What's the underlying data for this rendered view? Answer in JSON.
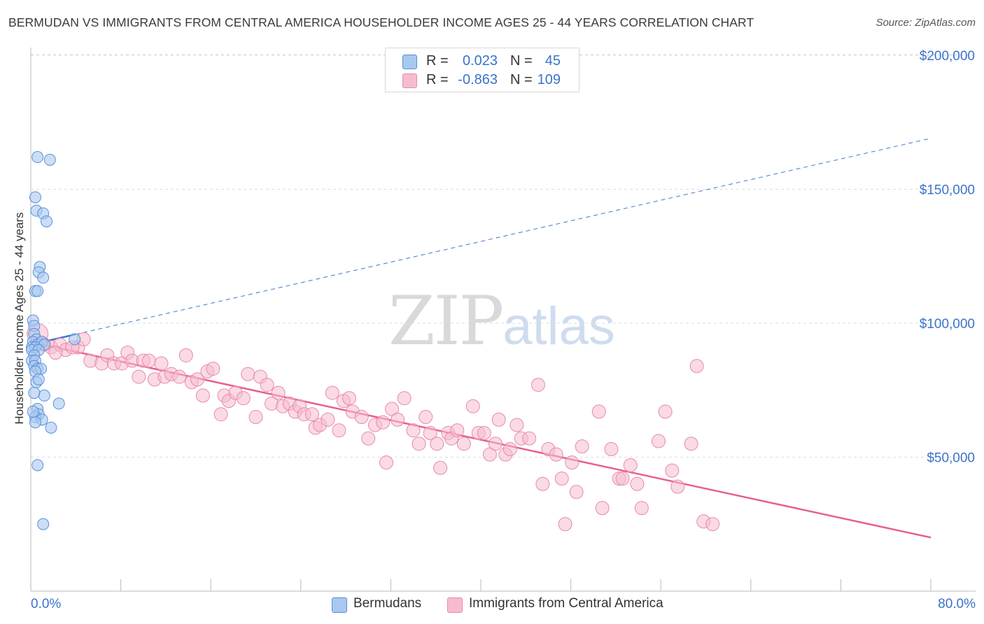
{
  "title": "BERMUDAN VS IMMIGRANTS FROM CENTRAL AMERICA HOUSEHOLDER INCOME AGES 25 - 44 YEARS CORRELATION CHART",
  "source": "Source: ZipAtlas.com",
  "watermark": {
    "zip": "ZIP",
    "atlas": "atlas"
  },
  "legend": {
    "rows": [
      {
        "r_label": "R =",
        "r_value": "0.023",
        "n_label": "N =",
        "n_value": "45"
      },
      {
        "r_label": "R =",
        "r_value": "-0.863",
        "n_label": "N =",
        "n_value": "109"
      }
    ]
  },
  "bottom_legend": {
    "series1": "Bermudans",
    "series2": "Immigrants from Central America"
  },
  "colors": {
    "blue_fill": "#a9c8f0",
    "blue_stroke": "#5a8fd8",
    "blue_line": "#3a78d0",
    "pink_fill": "#f6bccd",
    "pink_stroke": "#e88aa8",
    "pink_line": "#e8608c",
    "tick_text": "#3b73c8",
    "grid": "#dddddd"
  },
  "chart_data": {
    "type": "scatter",
    "title": "BERMUDAN VS IMMIGRANTS FROM CENTRAL AMERICA HOUSEHOLDER INCOME AGES 25 - 44 YEARS CORRELATION CHART",
    "xlabel": "",
    "ylabel": "Householder Income Ages 25 - 44 years",
    "xlim": [
      0,
      80
    ],
    "ylim": [
      0,
      210000
    ],
    "x_tick_labels": [
      "0.0%",
      "80.0%"
    ],
    "y_ticks": [
      50000,
      100000,
      150000,
      200000
    ],
    "y_tick_labels": [
      "$50,000",
      "$100,000",
      "$150,000",
      "$200,000"
    ],
    "grid": true,
    "legend_position": "top-center",
    "series": [
      {
        "name": "Bermudans",
        "r": 0.023,
        "n": 45,
        "trend": {
          "x": [
            0,
            80
          ],
          "y": [
            92000,
            169000
          ],
          "solid_until_x": 4.0
        },
        "points": [
          [
            0.6,
            162000
          ],
          [
            1.7,
            161000
          ],
          [
            0.4,
            147000
          ],
          [
            0.5,
            142000
          ],
          [
            1.1,
            141000
          ],
          [
            1.4,
            138000
          ],
          [
            0.8,
            121000
          ],
          [
            0.7,
            119000
          ],
          [
            1.1,
            117000
          ],
          [
            0.4,
            112000
          ],
          [
            0.6,
            112000
          ],
          [
            0.2,
            101000
          ],
          [
            0.3,
            99000
          ],
          [
            0.3,
            96000
          ],
          [
            0.5,
            94000
          ],
          [
            0.2,
            93000
          ],
          [
            0.6,
            92000
          ],
          [
            1.0,
            93000
          ],
          [
            1.2,
            92000
          ],
          [
            0.1,
            91000
          ],
          [
            0.4,
            91000
          ],
          [
            0.1,
            90000
          ],
          [
            0.7,
            90000
          ],
          [
            3.9,
            94000
          ],
          [
            0.3,
            88000
          ],
          [
            0.1,
            86000
          ],
          [
            0.4,
            86000
          ],
          [
            0.3,
            84000
          ],
          [
            0.6,
            83000
          ],
          [
            0.9,
            83000
          ],
          [
            0.4,
            82000
          ],
          [
            0.5,
            78000
          ],
          [
            0.7,
            79000
          ],
          [
            1.2,
            73000
          ],
          [
            2.5,
            70000
          ],
          [
            0.3,
            74000
          ],
          [
            0.6,
            68000
          ],
          [
            0.7,
            66000
          ],
          [
            0.4,
            65000
          ],
          [
            1.0,
            64000
          ],
          [
            0.4,
            63000
          ],
          [
            1.8,
            61000
          ],
          [
            0.6,
            47000
          ],
          [
            1.1,
            25000
          ],
          [
            0.2,
            67000
          ]
        ]
      },
      {
        "name": "Immigrants from Central America",
        "r": -0.863,
        "n": 109,
        "trend": {
          "x": [
            0,
            80
          ],
          "y": [
            93000,
            20000
          ]
        },
        "points": [
          [
            0.6,
            96000
          ],
          [
            1.2,
            92000
          ],
          [
            1.8,
            91000
          ],
          [
            2.6,
            92000
          ],
          [
            3.1,
            90000
          ],
          [
            4.2,
            91000
          ],
          [
            4.7,
            94000
          ],
          [
            5.3,
            86000
          ],
          [
            6.3,
            85000
          ],
          [
            6.8,
            88000
          ],
          [
            7.4,
            85000
          ],
          [
            8.1,
            85000
          ],
          [
            8.6,
            89000
          ],
          [
            9.0,
            86000
          ],
          [
            9.6,
            80000
          ],
          [
            10.0,
            86000
          ],
          [
            10.5,
            86000
          ],
          [
            11.0,
            79000
          ],
          [
            11.6,
            85000
          ],
          [
            11.9,
            80000
          ],
          [
            12.5,
            81000
          ],
          [
            13.2,
            80000
          ],
          [
            13.8,
            88000
          ],
          [
            14.3,
            78000
          ],
          [
            14.8,
            79000
          ],
          [
            15.3,
            73000
          ],
          [
            15.7,
            82000
          ],
          [
            16.2,
            83000
          ],
          [
            16.9,
            66000
          ],
          [
            17.2,
            73000
          ],
          [
            17.6,
            71000
          ],
          [
            18.2,
            74000
          ],
          [
            18.9,
            72000
          ],
          [
            19.3,
            81000
          ],
          [
            20.0,
            65000
          ],
          [
            20.4,
            80000
          ],
          [
            21.0,
            77000
          ],
          [
            21.4,
            70000
          ],
          [
            22.0,
            74000
          ],
          [
            22.4,
            69000
          ],
          [
            23.0,
            70000
          ],
          [
            23.5,
            67000
          ],
          [
            23.9,
            69000
          ],
          [
            24.3,
            66000
          ],
          [
            25.0,
            66000
          ],
          [
            25.3,
            61000
          ],
          [
            25.7,
            62000
          ],
          [
            26.4,
            64000
          ],
          [
            26.8,
            74000
          ],
          [
            27.4,
            60000
          ],
          [
            27.8,
            71000
          ],
          [
            28.3,
            72000
          ],
          [
            28.6,
            67000
          ],
          [
            29.4,
            65000
          ],
          [
            30.0,
            57000
          ],
          [
            30.6,
            62000
          ],
          [
            31.3,
            63000
          ],
          [
            31.6,
            48000
          ],
          [
            32.1,
            68000
          ],
          [
            32.6,
            64000
          ],
          [
            33.2,
            72000
          ],
          [
            34.0,
            60000
          ],
          [
            34.5,
            55000
          ],
          [
            35.1,
            65000
          ],
          [
            35.5,
            59000
          ],
          [
            36.1,
            55000
          ],
          [
            36.4,
            46000
          ],
          [
            37.1,
            59000
          ],
          [
            37.4,
            57000
          ],
          [
            37.9,
            60000
          ],
          [
            38.5,
            55000
          ],
          [
            39.3,
            69000
          ],
          [
            39.8,
            59000
          ],
          [
            40.3,
            59000
          ],
          [
            40.8,
            51000
          ],
          [
            41.3,
            55000
          ],
          [
            41.6,
            64000
          ],
          [
            42.2,
            51000
          ],
          [
            42.6,
            53000
          ],
          [
            43.2,
            62000
          ],
          [
            43.6,
            57000
          ],
          [
            44.3,
            57000
          ],
          [
            45.1,
            77000
          ],
          [
            45.5,
            40000
          ],
          [
            46.0,
            53000
          ],
          [
            46.7,
            51000
          ],
          [
            47.2,
            42000
          ],
          [
            47.5,
            25000
          ],
          [
            48.1,
            48000
          ],
          [
            48.5,
            37000
          ],
          [
            49.0,
            54000
          ],
          [
            50.5,
            67000
          ],
          [
            50.8,
            31000
          ],
          [
            51.6,
            53000
          ],
          [
            52.3,
            42000
          ],
          [
            52.6,
            42000
          ],
          [
            53.3,
            47000
          ],
          [
            53.9,
            40000
          ],
          [
            54.3,
            31000
          ],
          [
            55.8,
            56000
          ],
          [
            56.4,
            67000
          ],
          [
            57.0,
            45000
          ],
          [
            57.5,
            39000
          ],
          [
            58.7,
            55000
          ],
          [
            59.2,
            84000
          ],
          [
            59.8,
            26000
          ],
          [
            60.6,
            25000
          ],
          [
            2.2,
            89000
          ],
          [
            3.7,
            91000
          ]
        ]
      }
    ]
  }
}
